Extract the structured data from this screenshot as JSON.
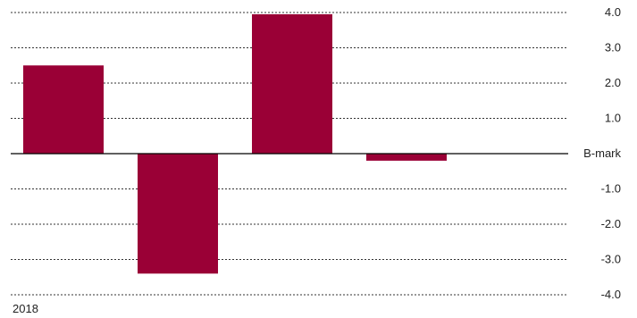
{
  "chart_data": {
    "type": "bar",
    "categories": [
      "2018",
      "",
      "",
      ""
    ],
    "values": [
      2.5,
      -3.4,
      3.95,
      -0.2
    ],
    "ylim": [
      -4,
      4
    ],
    "yticks": [
      {
        "value": 4,
        "label": "4.0"
      },
      {
        "value": 3,
        "label": "3.0"
      },
      {
        "value": 2,
        "label": "2.0"
      },
      {
        "value": 1,
        "label": "1.0"
      },
      {
        "value": 0,
        "label": "B-mark"
      },
      {
        "value": -1,
        "label": "-1.0"
      },
      {
        "value": -2,
        "label": "-2.0"
      },
      {
        "value": -3,
        "label": "-3.0"
      },
      {
        "value": -4,
        "label": "-4.0"
      }
    ],
    "grid": true,
    "bar_color": "#9a0036",
    "grid_color": "#333333",
    "baseline_color": "#000000"
  }
}
